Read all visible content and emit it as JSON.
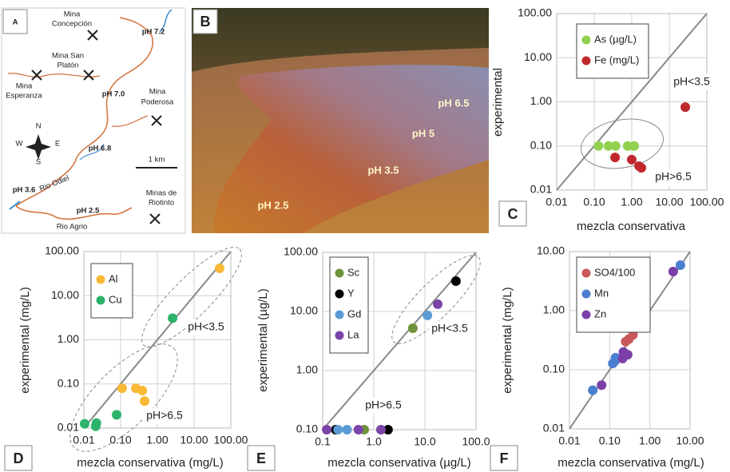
{
  "map": {
    "panel_label": "A",
    "mine_1": [
      "Mina",
      "Concepción"
    ],
    "ph_1": "pH 7.2",
    "mine_2": [
      "Mina San",
      "Platón"
    ],
    "mine_3": [
      "Mina",
      "Esperanza"
    ],
    "ph_2": "pH 7.0",
    "mine_4": [
      "Mina",
      "Poderosa"
    ],
    "compass": [
      "N",
      "W",
      "E",
      "S"
    ],
    "ph_3": "pH 6.8",
    "scale": "1 km",
    "ph_4": "pH 3.6",
    "river_1": "Rio Odiel",
    "ph_5": "pH 2.5",
    "river_2": "Rio Agrio",
    "mine_5": [
      "Minas de",
      "Riotinto"
    ]
  },
  "photo": {
    "panel_label": "B",
    "labels": [
      "pH 6.5",
      "pH 5",
      "pH 3.5",
      "pH 2.5"
    ]
  },
  "chart_data": [
    {
      "type": "scatter",
      "panel_label": "C",
      "xlabel": "mezcla conservativa",
      "ylabel": "experimental",
      "log_scale": true,
      "grid": true,
      "xlim": [
        0.01,
        100
      ],
      "ylim": [
        0.01,
        100
      ],
      "xticks": [
        {
          "value": 0.01,
          "label": "0.01"
        },
        {
          "value": 0.1,
          "label": "0.10"
        },
        {
          "value": 1,
          "label": "1.00"
        },
        {
          "value": 10,
          "label": "10.00"
        },
        {
          "value": 100,
          "label": "100.00"
        }
      ],
      "yticks": [
        {
          "value": 0.01,
          "label": "0.01"
        },
        {
          "value": 0.1,
          "label": "0.10"
        },
        {
          "value": 1,
          "label": "1.00"
        },
        {
          "value": 10,
          "label": "10.00"
        },
        {
          "value": 100,
          "label": "100.00"
        }
      ],
      "series": [
        {
          "name": "As (µg/L)",
          "color": "#92d050",
          "x": [
            0.13,
            0.24,
            0.37,
            0.78,
            1.16
          ],
          "values": [
            0.1,
            0.1,
            0.1,
            0.1,
            0.1
          ]
        },
        {
          "name": "Fe (mg/L)",
          "color": "#c0282d",
          "x": [
            0.36,
            1.0,
            1.56,
            1.8,
            26.7
          ],
          "values": [
            0.055,
            0.049,
            0.035,
            0.032,
            0.76
          ]
        }
      ],
      "annotations": [
        "pH<3.5",
        "pH>6.5"
      ]
    },
    {
      "type": "scatter",
      "panel_label": "D",
      "xlabel": "mezcla conservativa (mg/L)",
      "ylabel": "experimental (mg/L)",
      "log_scale": true,
      "grid": true,
      "xlim": [
        0.01,
        100
      ],
      "ylim": [
        0.01,
        100
      ],
      "xticks": [
        {
          "value": 0.01,
          "label": "0.01"
        },
        {
          "value": 0.1,
          "label": "0.10"
        },
        {
          "value": 1,
          "label": "1.00"
        },
        {
          "value": 10,
          "label": "10.00"
        },
        {
          "value": 100,
          "label": "100.00"
        }
      ],
      "yticks": [
        {
          "value": 0.01,
          "label": "0.01"
        },
        {
          "value": 0.1,
          "label": "0.10"
        },
        {
          "value": 1,
          "label": "1.00"
        },
        {
          "value": 10,
          "label": "10.00"
        },
        {
          "value": 100,
          "label": "100.00"
        }
      ],
      "series": [
        {
          "name": "Al",
          "color": "#f9b935",
          "x": [
            0.11,
            0.26,
            0.39,
            0.45,
            49.6
          ],
          "values": [
            0.08,
            0.08,
            0.071,
            0.041,
            41.7
          ]
        },
        {
          "name": "Cu",
          "color": "#2cb36b",
          "x": [
            0.0105,
            0.021,
            0.022,
            0.078,
            2.6
          ],
          "values": [
            0.0125,
            0.011,
            0.013,
            0.02,
            3.1
          ]
        }
      ],
      "annotations": [
        "pH<3.5",
        "pH>6.5"
      ]
    },
    {
      "type": "scatter",
      "panel_label": "E",
      "xlabel": "mezcla conservativa (µg/L)",
      "ylabel": "experimental (µg/L)",
      "log_scale": true,
      "grid": true,
      "xlim": [
        0.1,
        100
      ],
      "ylim": [
        0.1,
        100
      ],
      "xticks": [
        0.1,
        {
          "value": 1,
          "label": "1.0"
        },
        {
          "value": 10,
          "label": "10.0"
        },
        {
          "value": 100,
          "label": "100.0"
        }
      ],
      "yticks": [
        {
          "value": 0.1,
          "label": "0.10"
        },
        {
          "value": 1,
          "label": "1.00"
        },
        {
          "value": 10,
          "label": "10.00"
        },
        {
          "value": 100,
          "label": "100.00"
        }
      ],
      "series": [
        {
          "name": "Sc",
          "color": "#70943c",
          "x": [
            5.8,
            0.65
          ],
          "values": [
            5.2,
            0.1
          ]
        },
        {
          "name": "Y",
          "color": "#000000",
          "x": [
            40.5,
            0.18,
            1.9
          ],
          "values": [
            32.6,
            0.1,
            0.1
          ]
        },
        {
          "name": "Gd",
          "color": "#5b9bd5",
          "x": [
            11.2,
            0.2,
            0.3
          ],
          "values": [
            8.6,
            0.1,
            0.1
          ]
        },
        {
          "name": "La",
          "color": "#7a44a8",
          "x": [
            17.8,
            0.12,
            0.5,
            1.38
          ],
          "values": [
            13.3,
            0.1,
            0.1,
            0.1
          ]
        }
      ],
      "annotations": [
        "pH<3.5",
        "pH>6.5"
      ]
    },
    {
      "type": "scatter",
      "panel_label": "F",
      "xlabel": "mezcla conservativa (mg/L)",
      "ylabel": "experimental (mg/L)",
      "log_scale": true,
      "grid": true,
      "xlim": [
        0.01,
        10
      ],
      "ylim": [
        0.01,
        10
      ],
      "xticks": [
        {
          "value": 0.01,
          "label": "0.01"
        },
        {
          "value": 0.1,
          "label": "0.10"
        },
        {
          "value": 1,
          "label": "1.00"
        },
        {
          "value": 10,
          "label": "10.00"
        }
      ],
      "yticks": [
        {
          "value": 0.01,
          "label": "0.01"
        },
        {
          "value": 0.1,
          "label": "0.10"
        },
        {
          "value": 1,
          "label": "1.00"
        },
        {
          "value": 10,
          "label": "10.00"
        }
      ],
      "series": [
        {
          "name": "SO4/100",
          "color": "#c9585a",
          "x": [
            0.25,
            0.3,
            0.38
          ],
          "values": [
            0.3,
            0.33,
            0.39
          ]
        },
        {
          "name": "Mn",
          "color": "#4a7fd0",
          "x": [
            5.75,
            0.038,
            0.12,
            0.135,
            0.14
          ],
          "values": [
            5.9,
            0.045,
            0.128,
            0.14,
            0.16
          ]
        },
        {
          "name": "Zn",
          "color": "#7a3fa8",
          "x": [
            3.8,
            0.063,
            0.21,
            0.22,
            0.28
          ],
          "values": [
            4.6,
            0.055,
            0.155,
            0.2,
            0.18
          ]
        }
      ],
      "annotations": []
    }
  ]
}
